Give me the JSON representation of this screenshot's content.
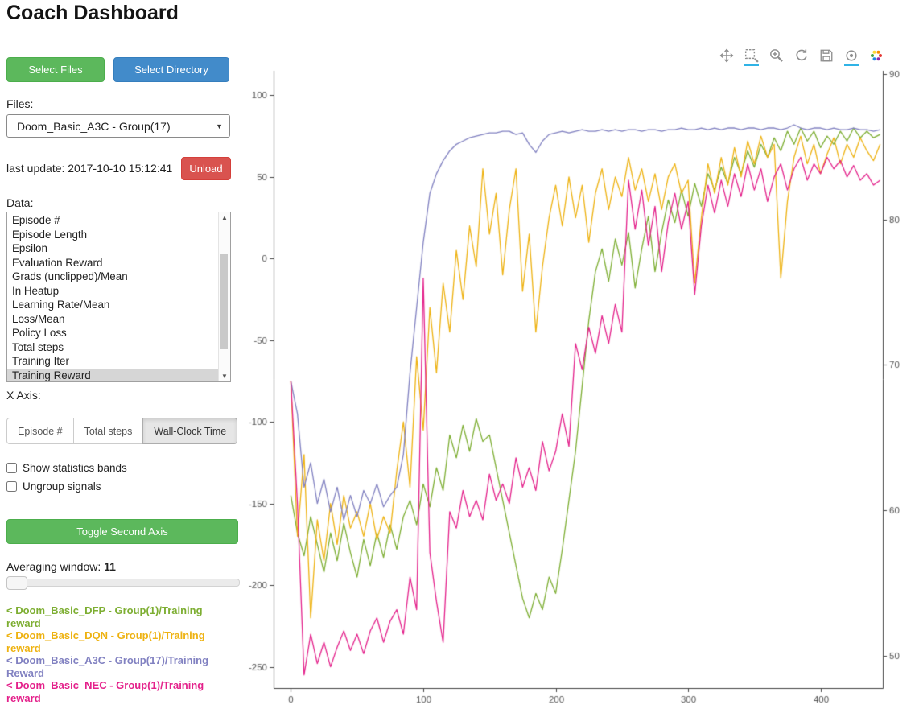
{
  "header": {
    "title": "Coach Dashboard"
  },
  "sidebar": {
    "select_files_label": "Select Files",
    "select_directory_label": "Select Directory",
    "files_label": "Files:",
    "files_selected": "Doom_Basic_A3C - Group(17)",
    "last_update": "last update: 2017-10-10 15:12:41",
    "unload_label": "Unload",
    "data_label": "Data:",
    "data_items": [
      "Episode #",
      "Episode Length",
      "Epsilon",
      "Evaluation Reward",
      "Grads (unclipped)/Mean",
      "In Heatup",
      "Learning Rate/Mean",
      "Loss/Mean",
      "Policy Loss",
      "Total steps",
      "Training Iter",
      "Training Reward"
    ],
    "data_selected": "Training Reward",
    "x_axis_label": "X Axis:",
    "x_axis_options": [
      {
        "label": "Episode #",
        "active": false
      },
      {
        "label": "Total steps",
        "active": false
      },
      {
        "label": "Wall-Clock Time",
        "active": true
      }
    ],
    "checkboxes": [
      {
        "label": "Show statistics bands",
        "checked": false
      },
      {
        "label": "Ungroup signals",
        "checked": false
      }
    ],
    "toggle_second_axis_label": "Toggle Second Axis",
    "averaging_window_label": "Averaging window:",
    "averaging_window_value": "11",
    "legend": [
      {
        "text": "< Doom_Basic_DFP - Group(1)/Training reward",
        "color": "#7dae32"
      },
      {
        "text": "< Doom_Basic_DQN - Group(1)/Training reward",
        "color": "#eeb211"
      },
      {
        "text": "< Doom_Basic_A3C - Group(17)/Training Reward",
        "color": "#8181c1"
      },
      {
        "text": "< Doom_Basic_NEC - Group(1)/Training reward",
        "color": "#e4218b"
      }
    ]
  },
  "toolbar": {
    "tools": [
      {
        "name": "pan-icon",
        "active": false
      },
      {
        "name": "box-zoom-icon",
        "active": true
      },
      {
        "name": "wheel-zoom-icon",
        "active": false
      },
      {
        "name": "reset-icon",
        "active": false
      },
      {
        "name": "save-icon",
        "active": false
      },
      {
        "name": "hover-icon",
        "active": true
      },
      {
        "name": "bokeh-logo-icon",
        "active": false
      }
    ]
  },
  "chart_data": {
    "type": "line",
    "x_start": 0,
    "x_step": 5,
    "xlim": [
      -13,
      447
    ],
    "ylim_left": [
      -263,
      115
    ],
    "ylim_right": [
      47.8,
      90.2
    ],
    "x_ticks": [
      0,
      100,
      200,
      300,
      400
    ],
    "y_ticks_left": [
      100,
      50,
      0,
      -50,
      -100,
      -150,
      -200,
      -250
    ],
    "y_ticks_right": [
      90,
      80,
      70,
      60,
      50
    ],
    "xlabel": "Wall-Clock Time",
    "series": [
      {
        "name": "Doom_Basic_DFP - Group(1)/Training reward",
        "color": "#7dae32",
        "values": [
          -145,
          -168,
          -182,
          -158,
          -175,
          -192,
          -168,
          -185,
          -162,
          -180,
          -195,
          -172,
          -188,
          -168,
          -183,
          -163,
          -178,
          -158,
          -148,
          -163,
          -138,
          -152,
          -128,
          -142,
          -108,
          -122,
          -102,
          -118,
          -98,
          -112,
          -108,
          -128,
          -148,
          -168,
          -188,
          -208,
          -220,
          -205,
          -215,
          -195,
          -205,
          -178,
          -148,
          -118,
          -78,
          -38,
          -8,
          6,
          -14,
          12,
          -4,
          16,
          -18,
          6,
          26,
          -8,
          16,
          36,
          22,
          42,
          26,
          46,
          32,
          52,
          42,
          56,
          46,
          62,
          52,
          66,
          56,
          70,
          62,
          74,
          66,
          78,
          70,
          80,
          72,
          78,
          68,
          75,
          70,
          78,
          72,
          80,
          74,
          78,
          74,
          76
        ]
      },
      {
        "name": "Doom_Basic_DQN - Group(1)/Training reward",
        "color": "#eeb211",
        "values": [
          -75,
          -170,
          -120,
          -220,
          -160,
          -185,
          -150,
          -175,
          -145,
          -165,
          -155,
          -170,
          -150,
          -172,
          -158,
          -168,
          -130,
          -100,
          -140,
          -60,
          -105,
          -30,
          -70,
          -15,
          -45,
          5,
          -25,
          20,
          -5,
          55,
          15,
          40,
          -10,
          30,
          55,
          -20,
          15,
          -45,
          -5,
          25,
          45,
          20,
          50,
          25,
          45,
          10,
          40,
          55,
          30,
          50,
          38,
          62,
          42,
          55,
          35,
          52,
          30,
          50,
          58,
          40,
          48,
          -15,
          25,
          58,
          40,
          62,
          45,
          68,
          50,
          72,
          58,
          75,
          62,
          70,
          -12,
          35,
          62,
          75,
          58,
          70,
          52,
          64,
          74,
          58,
          70,
          62,
          74,
          66,
          60,
          70
        ]
      },
      {
        "name": "Doom_Basic_A3C - Group(17)/Training Reward",
        "color": "#8181c1",
        "values": [
          -75,
          -95,
          -140,
          -125,
          -150,
          -135,
          -155,
          -140,
          -160,
          -145,
          -158,
          -142,
          -150,
          -138,
          -152,
          -145,
          -140,
          -120,
          -70,
          -30,
          10,
          40,
          52,
          60,
          66,
          70,
          72,
          74,
          75,
          76,
          77,
          77,
          78,
          78,
          76,
          77,
          70,
          65,
          72,
          76,
          77,
          78,
          77,
          78,
          79,
          78,
          78,
          79,
          78,
          79,
          78,
          79,
          79,
          78,
          79,
          79,
          78,
          79,
          79,
          80,
          79,
          79,
          80,
          79,
          80,
          79,
          80,
          80,
          79,
          80,
          80,
          79,
          80,
          80,
          79,
          80,
          82,
          80,
          79,
          80,
          80,
          79,
          80,
          79,
          79,
          80,
          79,
          79,
          78,
          79
        ]
      },
      {
        "name": "Doom_Basic_NEC - Group(1)/Training reward",
        "color": "#e4218b",
        "values": [
          -75,
          -150,
          -255,
          -230,
          -248,
          -235,
          -250,
          -238,
          -228,
          -240,
          -230,
          -242,
          -228,
          -220,
          -235,
          -222,
          -215,
          -230,
          -195,
          -215,
          -12,
          -180,
          -210,
          -235,
          -155,
          -165,
          -142,
          -158,
          -148,
          -160,
          -132,
          -148,
          -138,
          -150,
          -122,
          -140,
          -128,
          -142,
          -112,
          -130,
          -118,
          -95,
          -115,
          -52,
          -68,
          -42,
          -58,
          -35,
          -52,
          -28,
          -45,
          48,
          18,
          42,
          8,
          32,
          -8,
          22,
          40,
          18,
          35,
          -22,
          20,
          45,
          28,
          48,
          32,
          52,
          38,
          58,
          42,
          55,
          35,
          50,
          58,
          42,
          55,
          62,
          48,
          58,
          52,
          62,
          55,
          60,
          50,
          57,
          48,
          52,
          45,
          48
        ]
      }
    ]
  }
}
